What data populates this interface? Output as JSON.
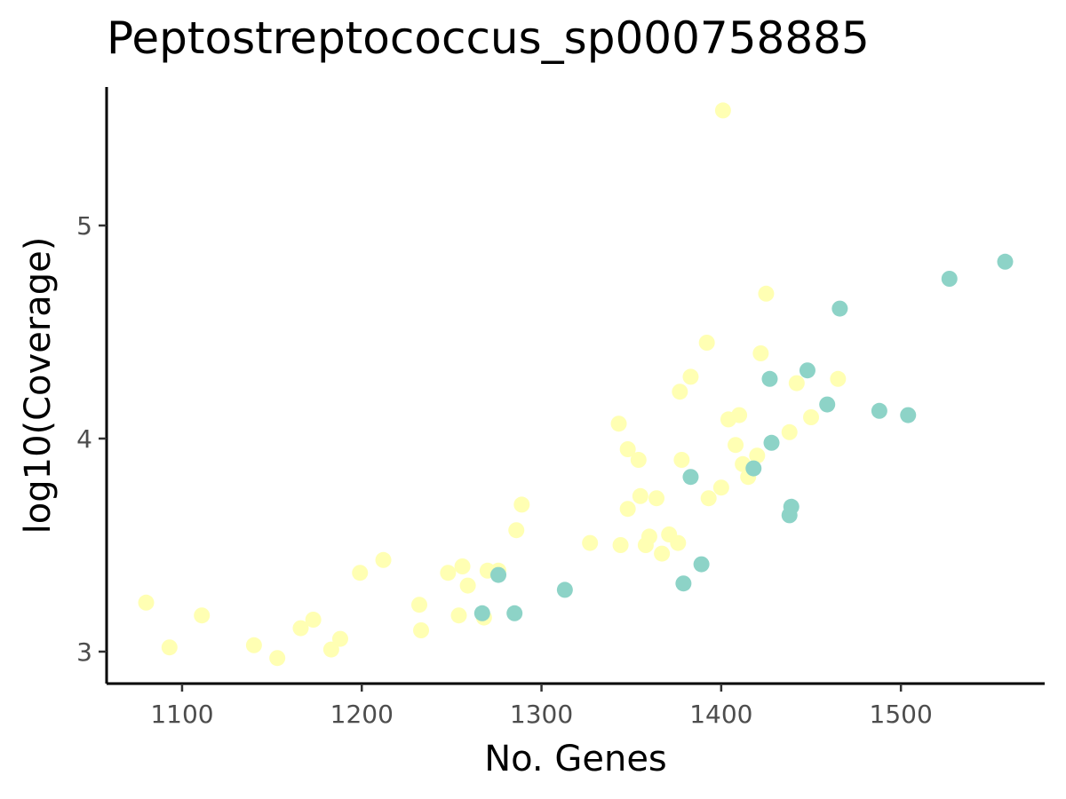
{
  "chart_data": {
    "type": "scatter",
    "title": "Peptostreptococcus_sp000758885",
    "xlabel": "No. Genes",
    "ylabel": "log10(Coverage)",
    "xlim": [
      1058,
      1580
    ],
    "ylim": [
      2.85,
      5.65
    ],
    "x_ticks": [
      1100,
      1200,
      1300,
      1400,
      1500
    ],
    "y_ticks": [
      3,
      4,
      5
    ],
    "grid": false,
    "legend": "none",
    "colors": {
      "yellow": "#ffffb3",
      "teal": "#8dd3c7"
    },
    "series": [
      {
        "color": "#ffffb3",
        "points": [
          [
            1080,
            3.23
          ],
          [
            1093,
            3.02
          ],
          [
            1111,
            3.17
          ],
          [
            1140,
            3.03
          ],
          [
            1153,
            2.97
          ],
          [
            1166,
            3.11
          ],
          [
            1173,
            3.15
          ],
          [
            1183,
            3.01
          ],
          [
            1188,
            3.06
          ],
          [
            1199,
            3.37
          ],
          [
            1212,
            3.43
          ],
          [
            1232,
            3.22
          ],
          [
            1233,
            3.1
          ],
          [
            1248,
            3.37
          ],
          [
            1254,
            3.17
          ],
          [
            1256,
            3.4
          ],
          [
            1259,
            3.31
          ],
          [
            1268,
            3.16
          ],
          [
            1270,
            3.38
          ],
          [
            1276,
            3.38
          ],
          [
            1286,
            3.57
          ],
          [
            1289,
            3.69
          ],
          [
            1327,
            3.51
          ],
          [
            1343,
            4.07
          ],
          [
            1344,
            3.5
          ],
          [
            1348,
            3.67
          ],
          [
            1348,
            3.95
          ],
          [
            1354,
            3.9
          ],
          [
            1355,
            3.73
          ],
          [
            1358,
            3.5
          ],
          [
            1360,
            3.54
          ],
          [
            1364,
            3.72
          ],
          [
            1367,
            3.46
          ],
          [
            1371,
            3.55
          ],
          [
            1376,
            3.51
          ],
          [
            1377,
            4.22
          ],
          [
            1378,
            3.9
          ],
          [
            1383,
            4.29
          ],
          [
            1392,
            4.45
          ],
          [
            1393,
            3.72
          ],
          [
            1400,
            3.77
          ],
          [
            1401,
            5.54
          ],
          [
            1404,
            4.09
          ],
          [
            1408,
            3.97
          ],
          [
            1410,
            4.11
          ],
          [
            1412,
            3.88
          ],
          [
            1415,
            3.82
          ],
          [
            1420,
            3.92
          ],
          [
            1422,
            4.4
          ],
          [
            1425,
            4.68
          ],
          [
            1438,
            4.03
          ],
          [
            1442,
            4.26
          ],
          [
            1450,
            4.1
          ],
          [
            1465,
            4.28
          ]
        ]
      },
      {
        "color": "#8dd3c7",
        "points": [
          [
            1267,
            3.18
          ],
          [
            1276,
            3.36
          ],
          [
            1285,
            3.18
          ],
          [
            1313,
            3.29
          ],
          [
            1379,
            3.32
          ],
          [
            1383,
            3.82
          ],
          [
            1389,
            3.41
          ],
          [
            1418,
            3.86
          ],
          [
            1427,
            4.28
          ],
          [
            1428,
            3.98
          ],
          [
            1438,
            3.64
          ],
          [
            1439,
            3.68
          ],
          [
            1448,
            4.32
          ],
          [
            1459,
            4.16
          ],
          [
            1466,
            4.61
          ],
          [
            1488,
            4.13
          ],
          [
            1504,
            4.11
          ],
          [
            1527,
            4.75
          ],
          [
            1558,
            4.83
          ]
        ]
      }
    ]
  }
}
